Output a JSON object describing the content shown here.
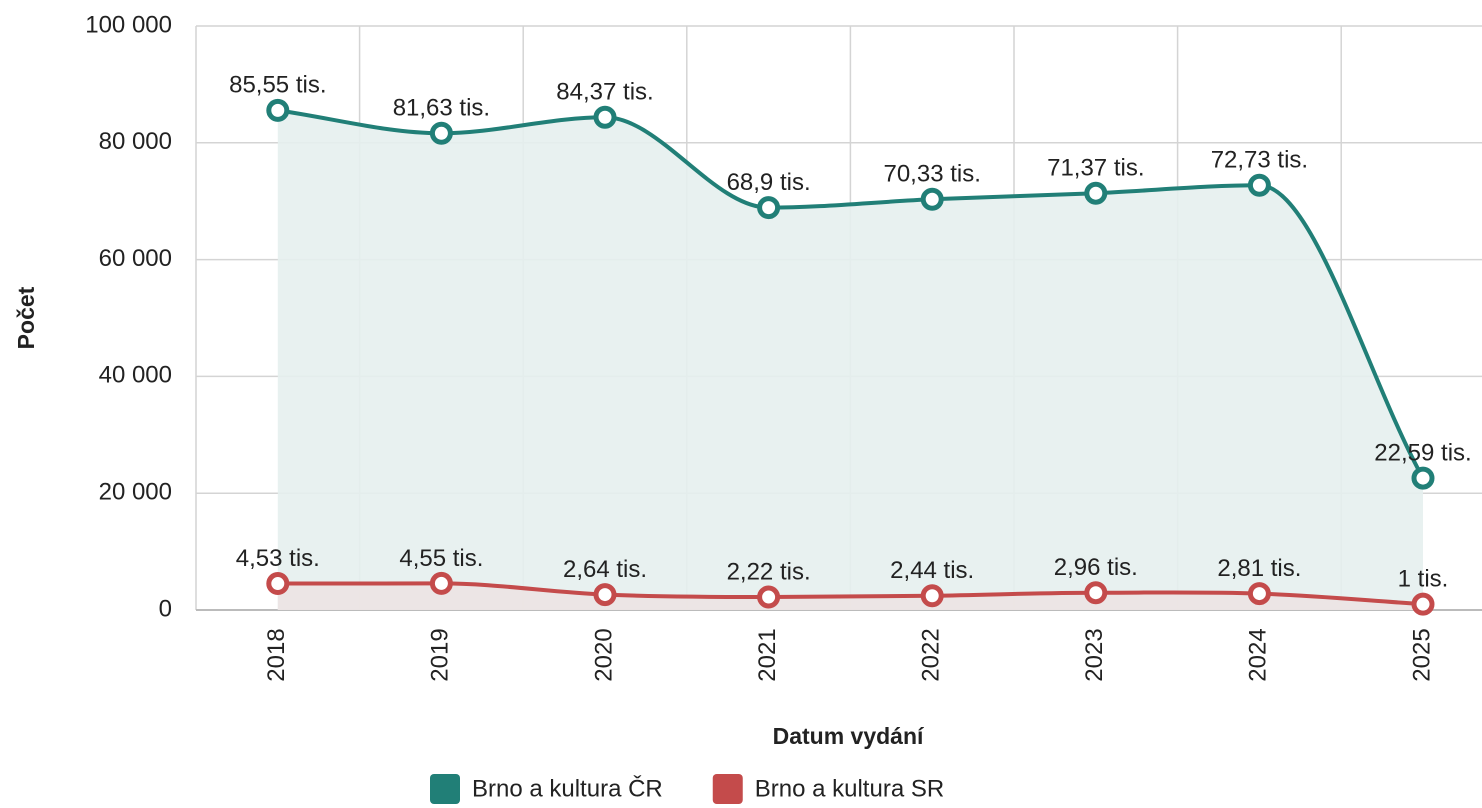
{
  "chart_data": {
    "type": "line",
    "x_label": "Datum vydání",
    "y_label": "Počet",
    "categories": [
      "2018",
      "2019",
      "2020",
      "2021",
      "2022",
      "2023",
      "2024",
      "2025"
    ],
    "series": [
      {
        "name": "Brno a kultura ČR",
        "color": "#217f77",
        "area_color": "#e6f0ee",
        "values": [
          85550,
          81630,
          84370,
          68900,
          70330,
          71370,
          72730,
          22590
        ],
        "value_labels": [
          "85,55 tis.",
          "81,63 tis.",
          "84,37 tis.",
          "68,9 tis.",
          "70,33 tis.",
          "71,37 tis.",
          "72,73 tis.",
          "22,59 tis."
        ]
      },
      {
        "name": "Brno a kultura SR",
        "color": "#c44b4b",
        "area_color": "#ece3e3",
        "values": [
          4530,
          4550,
          2640,
          2220,
          2440,
          2960,
          2810,
          1000
        ],
        "value_labels": [
          "4,53 tis.",
          "4,55 tis.",
          "2,64 tis.",
          "2,22 tis.",
          "2,44 tis.",
          "2,96 tis.",
          "2,81 tis.",
          "1 tis."
        ]
      }
    ],
    "ylim": [
      0,
      100000
    ],
    "yticks": [
      0,
      {
        "value": 20000,
        "label": "20 000"
      },
      {
        "value": 40000,
        "label": "40 000"
      },
      {
        "value": 60000,
        "label": "60 000"
      },
      {
        "value": 80000,
        "label": "80 000"
      },
      {
        "value": 100000,
        "label": "100 000"
      }
    ],
    "grid": true,
    "legend": "bottom"
  }
}
